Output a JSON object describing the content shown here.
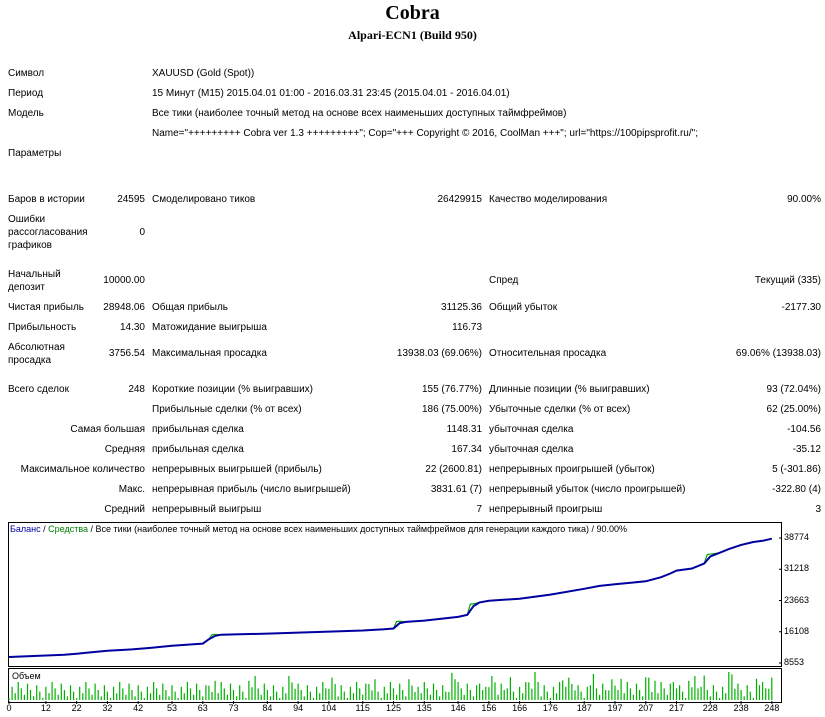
{
  "header": {
    "title": "Cobra",
    "subtitle": "Alpari-ECN1 (Build 950)"
  },
  "info": {
    "symbol_label": "Символ",
    "symbol_value": "XAUUSD (Gold (Spot))",
    "period_label": "Период",
    "period_value": "15 Минут (M15) 2015.04.01 01:00 - 2016.03.31 23:45 (2015.04.01 - 2016.04.01)",
    "model_label": "Модель",
    "model_value": "Все тики (наиболее точный метод на основе всех наименьших доступных таймфреймов)",
    "params_value": "Name=\"+++++++++ Cobra ver 1.3 +++++++++\"; Cop=\"+++ Copyright © 2016, CoolMan +++\"; url=\"https://100pipsprofit.ru/\";",
    "params_label": "Параметры"
  },
  "stats": {
    "bars_label": "Баров в истории",
    "bars_value": "24595",
    "ticks_label": "Смоделировано тиков",
    "ticks_value": "26429915",
    "quality_label": "Качество моделирования",
    "quality_value": "90.00%",
    "errors_label": "Ошибки рассогласования графиков",
    "errors_value": "0",
    "deposit_label": "Начальный депозит",
    "deposit_value": "10000.00",
    "spread_label": "Спред",
    "spread_value": "Текущий (335)",
    "net_label": "Чистая прибыль",
    "net_value": "28948.06",
    "gross_profit_label": "Общая прибыль",
    "gross_profit_value": "31125.36",
    "gross_loss_label": "Общий убыток",
    "gross_loss_value": "-2177.30",
    "pf_label": "Прибыльность",
    "pf_value": "14.30",
    "expected_label": "Матожидание выигрыша",
    "expected_value": "116.73",
    "abs_dd_label": "Абсолютная просадка",
    "abs_dd_value": "3756.54",
    "max_dd_label": "Максимальная просадка",
    "max_dd_value": "13938.03 (69.06%)",
    "rel_dd_label": "Относительная просадка",
    "rel_dd_value": "69.06% (13938.03)",
    "trades_label": "Всего сделок",
    "trades_value": "248",
    "short_label": "Короткие позиции (% выигравших)",
    "short_value": "155 (76.77%)",
    "long_label": "Длинные позиции (% выигравших)",
    "long_value": "93 (72.04%)",
    "profit_trades_label": "Прибыльные сделки (% от всех)",
    "profit_trades_value": "186 (75.00%)",
    "loss_trades_label": "Убыточные сделки (% от всех)",
    "loss_trades_value": "62 (25.00%)",
    "largest_label": "Самая большая",
    "largest_profit_label": "прибыльная сделка",
    "largest_profit_value": "1148.31",
    "largest_loss_label": "убыточная сделка",
    "largest_loss_value": "-104.56",
    "average_label": "Средняя",
    "avg_profit_label": "прибыльная сделка",
    "avg_profit_value": "167.34",
    "avg_loss_label": "убыточная сделка",
    "avg_loss_value": "-35.12",
    "max_count_label": "Максимальное количество",
    "cons_wins_label": "непрерывных выигрышей (прибыль)",
    "cons_wins_value": "22 (2600.81)",
    "cons_losses_label": "непрерывных проигрышей (убыток)",
    "cons_losses_value": "5 (-301.86)",
    "max_label": "Макс.",
    "cons_profit_label": "непрерывная прибыль (число выигрышей)",
    "cons_profit_value": "3831.61 (7)",
    "cons_loss_label": "непрерывный убыток (число проигрышей)",
    "cons_loss_value": "-322.80 (4)",
    "avg_cons_label": "Средний",
    "avg_cons_wins_label": "непрерывный выигрыш",
    "avg_cons_wins_value": "7",
    "avg_cons_losses_label": "непрерывный проигрыш",
    "avg_cons_losses_value": "3"
  },
  "chart_data": {
    "type": "line",
    "legend_balance": "Баланс",
    "legend_sep1": " / ",
    "legend_equity": "Средства",
    "legend_rest": " / Все тики (наиболее точный метод на основе всех наименьших доступных таймфреймов для генерации каждого тика) / 90.00%",
    "volume_label": "Объем",
    "y_ticks": [
      "38774",
      "31218",
      "23663",
      "16108",
      "8553"
    ],
    "y_tick_values": [
      38774,
      31218,
      23663,
      16108,
      8553
    ],
    "x_ticks": [
      "0",
      "12",
      "22",
      "32",
      "42",
      "53",
      "63",
      "73",
      "84",
      "94",
      "104",
      "115",
      "125",
      "135",
      "146",
      "156",
      "166",
      "176",
      "187",
      "197",
      "207",
      "217",
      "228",
      "238",
      "248"
    ],
    "ylim": [
      8553,
      38774
    ],
    "xlim": [
      0,
      250
    ],
    "colors": {
      "balance": "#0000a0",
      "equity": "#00a000",
      "volume": "#00b000"
    },
    "series": [
      {
        "name": "Баланс",
        "x": [
          0,
          5,
          10,
          18,
          22,
          26,
          32,
          40,
          46,
          53,
          60,
          63,
          65,
          67,
          69,
          75,
          84,
          94,
          104,
          115,
          122,
          125,
          127,
          129,
          135,
          146,
          149,
          151,
          153,
          156,
          166,
          176,
          187,
          192,
          197,
          207,
          212,
          215,
          217,
          222,
          226,
          228,
          231,
          234,
          238,
          242,
          245,
          248
        ],
        "y": [
          10000,
          10150,
          10300,
          10550,
          10800,
          11100,
          11500,
          11850,
          12200,
          12700,
          13100,
          13250,
          14300,
          15100,
          15400,
          15500,
          15650,
          15900,
          16150,
          16400,
          16700,
          16900,
          18200,
          18500,
          18800,
          19700,
          20200,
          22300,
          23200,
          23600,
          24100,
          25100,
          26500,
          27200,
          27600,
          28300,
          29300,
          30200,
          30900,
          31400,
          32600,
          34300,
          35200,
          36100,
          37100,
          37800,
          38100,
          38600
        ]
      },
      {
        "name": "Средства",
        "x": [
          0,
          5,
          10,
          18,
          22,
          26,
          32,
          40,
          46,
          53,
          60,
          63,
          65,
          66,
          67,
          69,
          75,
          84,
          94,
          104,
          115,
          122,
          125,
          126,
          127,
          129,
          135,
          146,
          149,
          150,
          151,
          153,
          156,
          166,
          176,
          187,
          192,
          197,
          207,
          212,
          215,
          217,
          222,
          226,
          227,
          228,
          231,
          234,
          238,
          242,
          245,
          248
        ],
        "y": [
          10000,
          10150,
          10300,
          10550,
          10800,
          11100,
          11500,
          11850,
          12200,
          12700,
          13100,
          13250,
          14300,
          15400,
          15450,
          15400,
          15500,
          15650,
          15900,
          16150,
          16400,
          16700,
          16900,
          18600,
          18650,
          18500,
          18800,
          19700,
          20200,
          22800,
          22850,
          23200,
          23600,
          24100,
          25100,
          26500,
          27200,
          27600,
          28300,
          29300,
          30200,
          30900,
          31400,
          32600,
          34800,
          34850,
          35200,
          36100,
          37100,
          37800,
          38100,
          38600
        ]
      }
    ]
  }
}
